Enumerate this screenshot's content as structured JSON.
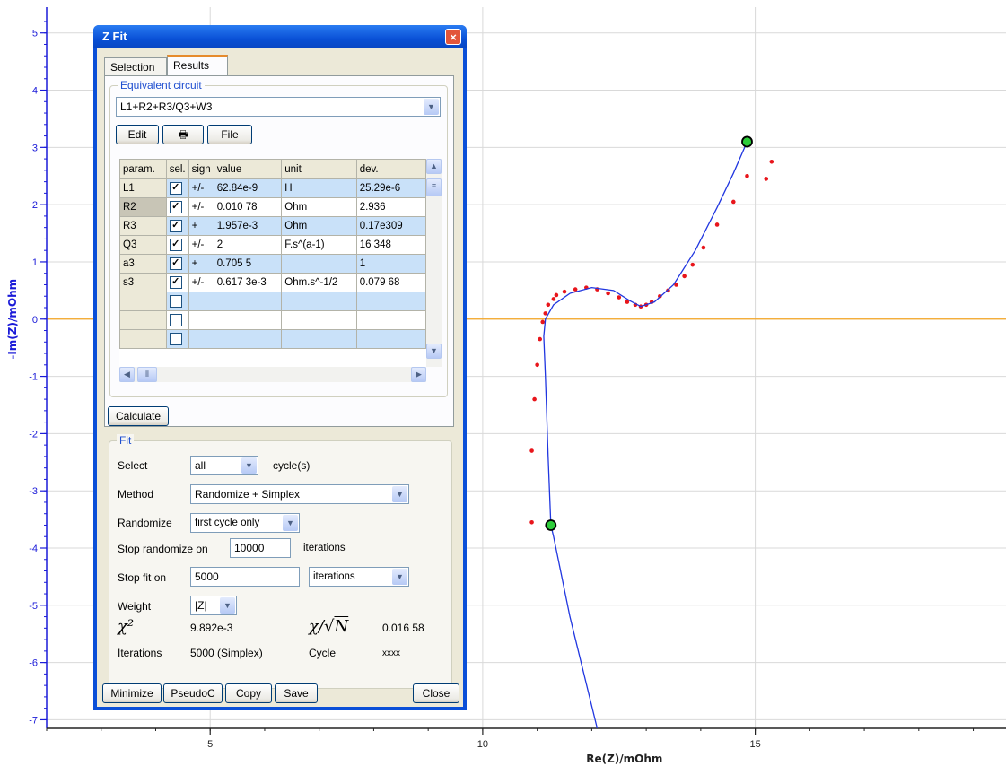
{
  "plot": {
    "ylabel": "-Im(Z)/mOhm",
    "xlabel": "Re(Z)/mOhm",
    "xticks": [
      "5",
      "10",
      "15"
    ],
    "yticks": [
      "5",
      "4",
      "3",
      "2",
      "1",
      "0",
      "-1",
      "-2",
      "-3",
      "-4",
      "-5",
      "-6",
      "-7"
    ],
    "xlim": [
      2,
      19.6
    ],
    "ylim": [
      -7.15,
      5.45
    ]
  },
  "chart_data": {
    "type": "scatter",
    "xlabel": "Re(Z)/mOhm",
    "ylabel": "-Im(Z)/mOhm",
    "xlim": [
      2,
      19.6
    ],
    "ylim": [
      -7.15,
      5.45
    ],
    "grid": true,
    "series": [
      {
        "kind": "points",
        "color": "#e8151b",
        "x": [
          10.9,
          10.9,
          10.95,
          11.0,
          11.05,
          11.1,
          11.15,
          11.2,
          11.3,
          11.35,
          11.5,
          11.7,
          11.9,
          12.1,
          12.3,
          12.5,
          12.65,
          12.8,
          12.9,
          13.0,
          13.1,
          13.25,
          13.4,
          13.55,
          13.7,
          13.85,
          14.05,
          14.3,
          14.6,
          14.85,
          15.2,
          15.3
        ],
        "y": [
          -3.55,
          -2.3,
          -1.4,
          -0.8,
          -0.35,
          -0.05,
          0.1,
          0.25,
          0.35,
          0.42,
          0.48,
          0.52,
          0.55,
          0.52,
          0.45,
          0.38,
          0.3,
          0.25,
          0.22,
          0.25,
          0.3,
          0.4,
          0.5,
          0.6,
          0.75,
          0.95,
          1.25,
          1.65,
          2.05,
          2.5,
          2.45,
          2.75
        ]
      },
      {
        "kind": "line",
        "color": "#2036e0",
        "x": [
          12.1,
          11.6,
          11.3,
          11.25,
          11.2,
          11.15,
          11.12,
          11.15,
          11.3,
          11.6,
          12.0,
          12.4,
          12.7,
          12.9,
          13.15,
          13.5,
          13.9,
          14.3,
          14.6,
          14.85
        ],
        "y": [
          -7.15,
          -5.2,
          -3.8,
          -3.6,
          -2.4,
          -1.0,
          -0.3,
          0.0,
          0.25,
          0.45,
          0.55,
          0.5,
          0.32,
          0.22,
          0.3,
          0.6,
          1.2,
          1.95,
          2.55,
          3.1
        ]
      },
      {
        "kind": "markers",
        "color": "#2ecc3a",
        "x": [
          11.25,
          14.85
        ],
        "y": [
          -3.6,
          3.1
        ]
      }
    ]
  },
  "dialog": {
    "title": "Z Fit",
    "tabs": [
      "Selection",
      "Results"
    ],
    "circuit_group": "Equivalent circuit",
    "circuit": "L1+R2+R3/Q3+W3",
    "edit_label": "Edit",
    "print_glyph": "🖶",
    "file_label": "File",
    "grid_headers": [
      "param.",
      "sel.",
      "sign",
      "value",
      "unit",
      "dev."
    ],
    "rows": [
      {
        "param": "L1",
        "sign": "+/-",
        "value": "62.84e-9",
        "unit": "H",
        "dev": "25.29e-6"
      },
      {
        "param": "R2",
        "sign": "+/-",
        "value": "0.010 78",
        "unit": "Ohm",
        "dev": "2.936"
      },
      {
        "param": "R3",
        "sign": "+",
        "value": "1.957e-3",
        "unit": "Ohm",
        "dev": "0.17e309"
      },
      {
        "param": "Q3",
        "sign": "+/-",
        "value": "2",
        "unit": "F.s^(a-1)",
        "dev": "16 348"
      },
      {
        "param": "a3",
        "sign": "+",
        "value": "0.705 5",
        "unit": "",
        "dev": "1"
      },
      {
        "param": "s3",
        "sign": "+/-",
        "value": "0.617 3e-3",
        "unit": "Ohm.s^-1/2",
        "dev": "0.079 68"
      }
    ],
    "calculate_label": "Calculate",
    "fit_group": "Fit",
    "select_label": "Select",
    "select_value": "all",
    "cycles_label": "cycle(s)",
    "method_label": "Method",
    "method_value": "Randomize + Simplex",
    "randomize_label": "Randomize",
    "randomize_value": "first cycle only",
    "stop_random_label": "Stop randomize on",
    "stop_random_value": "10000",
    "stop_random_unit": "iterations",
    "stop_fit_label": "Stop fit on",
    "stop_fit_value": "5000",
    "stop_fit_unit": "iterations",
    "weight_label": "Weight",
    "weight_value": "|Z|",
    "chi2_value": "9.892e-3",
    "chin_value": "0.016 58",
    "iterations_label": "Iterations",
    "iterations_value": "5000 (Simplex)",
    "cycle_label": "Cycle",
    "cycle_value": "xxxx",
    "buttons": {
      "minimize": "Minimize",
      "pseudoc": "PseudoC",
      "copy": "Copy",
      "save": "Save",
      "close": "Close"
    }
  }
}
